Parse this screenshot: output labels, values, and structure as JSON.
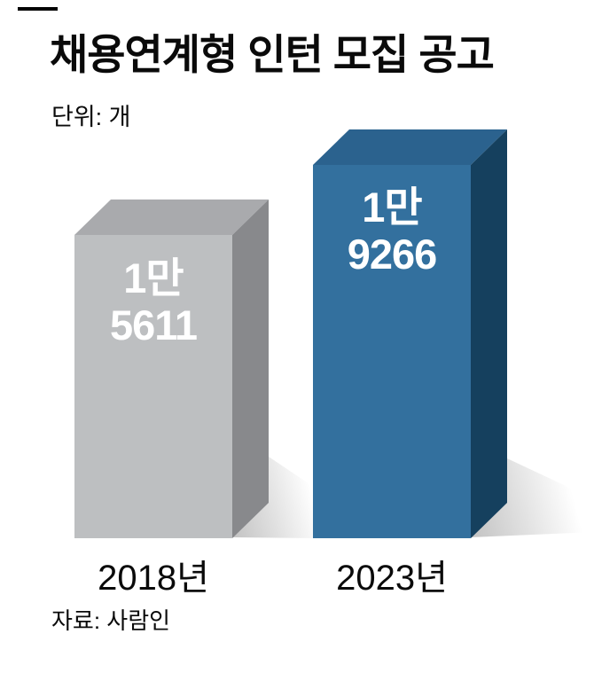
{
  "title": "채용연계형 인턴 모집 공고",
  "unit_label": "단위: 개",
  "source": "자료: 사람인",
  "chart_data": {
    "type": "bar",
    "title": "채용연계형 인턴 모집 공고",
    "unit": "개",
    "categories": [
      "2018년",
      "2023년"
    ],
    "values": [
      15611,
      19266
    ],
    "value_labels": [
      [
        "1만",
        "5611"
      ],
      [
        "1만",
        "9266"
      ]
    ],
    "source": "자료: 사람인",
    "legend": "none",
    "grid": false,
    "style": "3d-box-bars",
    "colors": {
      "bar_2018_front": "#bdbfc1",
      "bar_2018_top": "#a9aaad",
      "bar_2018_side": "#88898c",
      "bar_2023_front": "#33709e",
      "bar_2023_top": "#2b628e",
      "bar_2023_side": "#15405e",
      "value_text": "#ffffff",
      "label_text": "#000000",
      "accent_dash": "#000000"
    }
  },
  "bars": [
    {
      "category": "2018년",
      "value": 15611,
      "value_line1": "1만",
      "value_line2": "5611"
    },
    {
      "category": "2023년",
      "value": 19266,
      "value_line1": "1만",
      "value_line2": "9266"
    }
  ]
}
